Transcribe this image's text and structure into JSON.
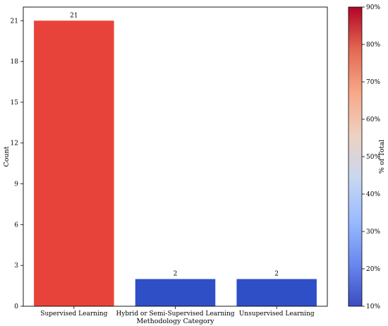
{
  "chart_data": {
    "type": "bar",
    "title": "",
    "xlabel": "Methodology Category",
    "ylabel": "Count",
    "categories": [
      "Supervised Learning",
      "Hybrid or Semi-Supervised Learning",
      "Unsupervised Learning"
    ],
    "values": [
      21,
      2,
      2
    ],
    "data_labels": [
      "21",
      "2",
      "2"
    ],
    "ylim": [
      0,
      22
    ],
    "yticks": [
      0,
      3,
      6,
      9,
      12,
      15,
      18,
      21
    ],
    "grid": false,
    "bar_colors": [
      "#e8433a",
      "#2f4fc6",
      "#2f4fc6"
    ],
    "colorbar": {
      "label": "% of Total",
      "range": [
        10,
        90
      ],
      "ticks": [
        10,
        20,
        30,
        40,
        50,
        60,
        70,
        80,
        90
      ],
      "tick_labels": [
        "10%",
        "20%",
        "30%",
        "40%",
        "50%",
        "60%",
        "70%",
        "80%",
        "90%"
      ],
      "colormap": [
        "#3b4cc0",
        "#6889ee",
        "#9abbff",
        "#c9d7f0",
        "#edd1c2",
        "#f7a889",
        "#e26952",
        "#b40426"
      ]
    }
  }
}
